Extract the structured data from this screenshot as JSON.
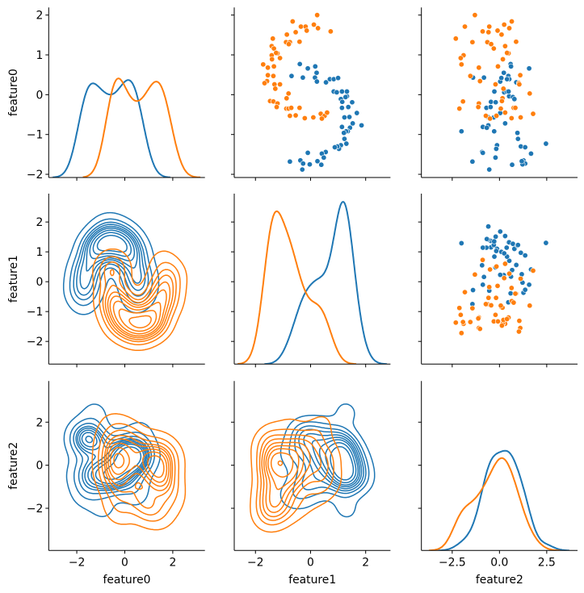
{
  "chart_data": {
    "type": "pairplot",
    "variables": [
      "feature0",
      "feature1",
      "feature2"
    ],
    "upper": "scatter",
    "lower": "kde-contour",
    "diagonal": "kde",
    "hue_colors": [
      "#1f77b4",
      "#ff7f0e"
    ],
    "x_ranges": [
      [
        -3.17,
        3.34
      ],
      [
        -2.77,
        2.9
      ],
      [
        -4.13,
        4.13
      ]
    ],
    "y_ranges": [
      [
        -2.08,
        2.19
      ],
      [
        -2.76,
        2.95
      ],
      [
        -3.96,
        3.91
      ]
    ],
    "x_ticks": [
      {
        "values": [
          -2,
          0,
          2
        ],
        "labels": [
          "−2",
          "0",
          "2"
        ]
      },
      {
        "values": [
          -2,
          0,
          2
        ],
        "labels": [
          "−2",
          "0",
          "2"
        ]
      },
      {
        "values": [
          -2.5,
          0,
          2.5
        ],
        "labels": [
          "−2.5",
          "0.0",
          "2.5"
        ]
      }
    ],
    "y_ticks": [
      {
        "values": [
          -2,
          -1,
          0,
          1,
          2
        ],
        "labels": [
          "−2",
          "−1",
          "0",
          "1",
          "2"
        ]
      },
      {
        "values": [
          -2,
          -1,
          0,
          1,
          2
        ],
        "labels": [
          "−2",
          "−1",
          "0",
          "1",
          "2"
        ]
      },
      {
        "values": [
          -2,
          0,
          2
        ],
        "labels": [
          "−2",
          "0",
          "2"
        ]
      }
    ],
    "xlabels": [
      "feature0",
      "feature1",
      "feature2"
    ],
    "ylabels": [
      "feature0",
      "feature1",
      "feature2"
    ],
    "kde_levels": 10,
    "kde_thresh": 0.05,
    "series": [
      {
        "color": "#1f77b4",
        "points": [
          [
            0.77,
            -0.39,
            0.59
          ],
          [
            0.66,
            -0.1,
            1.57
          ],
          [
            0.71,
            0.17,
            0.61
          ],
          [
            0.55,
            0.22,
            0.23
          ],
          [
            0.47,
            -0.69,
            0.47
          ],
          [
            0.43,
            -0.28,
            -1.4
          ],
          [
            0.43,
            0.16,
            -0.82
          ],
          [
            0.33,
            0.23,
            0.04
          ],
          [
            0.31,
            0.56,
            0.89
          ],
          [
            0.39,
            0.7,
            0.52
          ],
          [
            0.39,
            0.84,
            0.4
          ],
          [
            0.42,
            1.0,
            0.1
          ],
          [
            0.08,
            0.84,
            -0.27
          ],
          [
            0.06,
            0.95,
            0.25
          ],
          [
            0.08,
            1.14,
            0.38
          ],
          [
            0.08,
            1.32,
            0.48
          ],
          [
            -0.04,
            1.32,
            0.51
          ],
          [
            -0.06,
            1.27,
            0.71
          ],
          [
            -0.11,
            1.1,
            0.79
          ],
          [
            -0.18,
            1.15,
            -0.45
          ],
          [
            -0.19,
            1.51,
            -0.2
          ],
          [
            -0.33,
            1.14,
            -0.69
          ],
          [
            -0.31,
            1.37,
            -0.47
          ],
          [
            -0.46,
            1.68,
            0.04
          ],
          [
            -0.56,
            1.41,
            -0.61
          ],
          [
            -0.57,
            1.23,
            -0.3
          ],
          [
            -0.72,
            1.53,
            0.3
          ],
          [
            -0.77,
            1.85,
            -0.59
          ],
          [
            -0.81,
            1.14,
            -0.88
          ],
          [
            -0.83,
            1.43,
            -0.67
          ],
          [
            -0.92,
            1.35,
            -0.28
          ],
          [
            -0.92,
            1.29,
            -2.01
          ],
          [
            -0.96,
            1.21,
            0.95
          ],
          [
            -1.11,
            1.23,
            0.98
          ],
          [
            -1.23,
            1.3,
            2.46
          ],
          [
            -1.27,
            1.1,
            -0.13
          ],
          [
            -1.36,
            1.03,
            -0.17
          ],
          [
            -1.3,
            0.97,
            1.13
          ],
          [
            -1.32,
            0.88,
            1.36
          ],
          [
            -1.44,
            0.55,
            -0.92
          ],
          [
            -1.48,
            0.41,
            1.67
          ],
          [
            -1.46,
            -0.1,
            -0.88
          ],
          [
            -1.58,
            0.48,
            -0.21
          ],
          [
            -1.65,
            -0.37,
            1.27
          ],
          [
            -1.68,
            -0.75,
            -1.43
          ],
          [
            -1.73,
            -0.27,
            1.36
          ],
          [
            -1.75,
            -0.03,
            1.22
          ],
          [
            -1.67,
            0.25,
            1.18
          ],
          [
            -1.76,
            0.39,
            0.67
          ],
          [
            -1.88,
            -0.3,
            -0.54
          ]
        ]
      },
      {
        "color": "#ff7f0e",
        "points": [
          [
            2.0,
            0.24,
            -1.3
          ],
          [
            1.84,
            -0.65,
            0.65
          ],
          [
            1.71,
            -0.35,
            -1.83
          ],
          [
            1.71,
            -0.18,
            -0.54
          ],
          [
            1.76,
            0.12,
            0.25
          ],
          [
            1.67,
            0.27,
            0.52
          ],
          [
            1.59,
            0.73,
            -0.89
          ],
          [
            1.57,
            -0.54,
            -0.58
          ],
          [
            1.61,
            -0.14,
            -0.1
          ],
          [
            1.51,
            -0.86,
            0.11
          ],
          [
            1.41,
            -1.37,
            -2.31
          ],
          [
            1.32,
            -0.89,
            -1.43
          ],
          [
            1.32,
            -0.75,
            -0.64
          ],
          [
            1.27,
            -0.79,
            -0.44
          ],
          [
            1.33,
            -0.4,
            0.88
          ],
          [
            1.22,
            -1.41,
            0.3
          ],
          [
            1.16,
            -1.33,
            -0.3
          ],
          [
            1.04,
            -1.2,
            0.48
          ],
          [
            0.99,
            -1.41,
            -1.9
          ],
          [
            0.89,
            -1.4,
            0.18
          ],
          [
            0.92,
            -1.11,
            -2.05
          ],
          [
            0.76,
            -1.72,
            -2.01
          ],
          [
            0.68,
            -1.55,
            -1.09
          ],
          [
            0.71,
            -1.33,
            -0.08
          ],
          [
            0.49,
            -1.55,
            1.1
          ],
          [
            0.47,
            -1.35,
            -1.54
          ],
          [
            0.34,
            -1.58,
            -1.03
          ],
          [
            0.29,
            -1.67,
            1.03
          ],
          [
            0.26,
            -1.31,
            1.05
          ],
          [
            0.26,
            -1.11,
            -0.21
          ],
          [
            0.15,
            -1.28,
            0.21
          ],
          [
            0.03,
            -0.8,
            1.6
          ],
          [
            -0.09,
            -0.87,
            0.16
          ],
          [
            -0.16,
            -1.47,
            0.13
          ],
          [
            -0.17,
            -1.35,
            -1.93
          ],
          [
            -0.22,
            -1.2,
            -1.09
          ],
          [
            -0.31,
            -1.23,
            -1.12
          ],
          [
            -0.35,
            -0.88,
            -2.12
          ],
          [
            -0.35,
            -0.8,
            0.07
          ],
          [
            -0.33,
            -0.7,
            0.75
          ],
          [
            -0.33,
            -0.4,
            0.84
          ],
          [
            -0.53,
            -0.75,
            -0.72
          ],
          [
            -0.52,
            -0.54,
            -0.18
          ],
          [
            -0.59,
            -0.21,
            0.64
          ],
          [
            -0.57,
            0.1,
            1.12
          ],
          [
            -0.48,
            0.37,
            1.78
          ],
          [
            -0.53,
            0.51,
            -0.16
          ],
          [
            -0.45,
            0.6,
            0.3
          ],
          [
            -0.6,
            0.41,
            -0.5
          ],
          [
            1.05,
            -1.25,
            0.4
          ]
        ]
      }
    ]
  }
}
